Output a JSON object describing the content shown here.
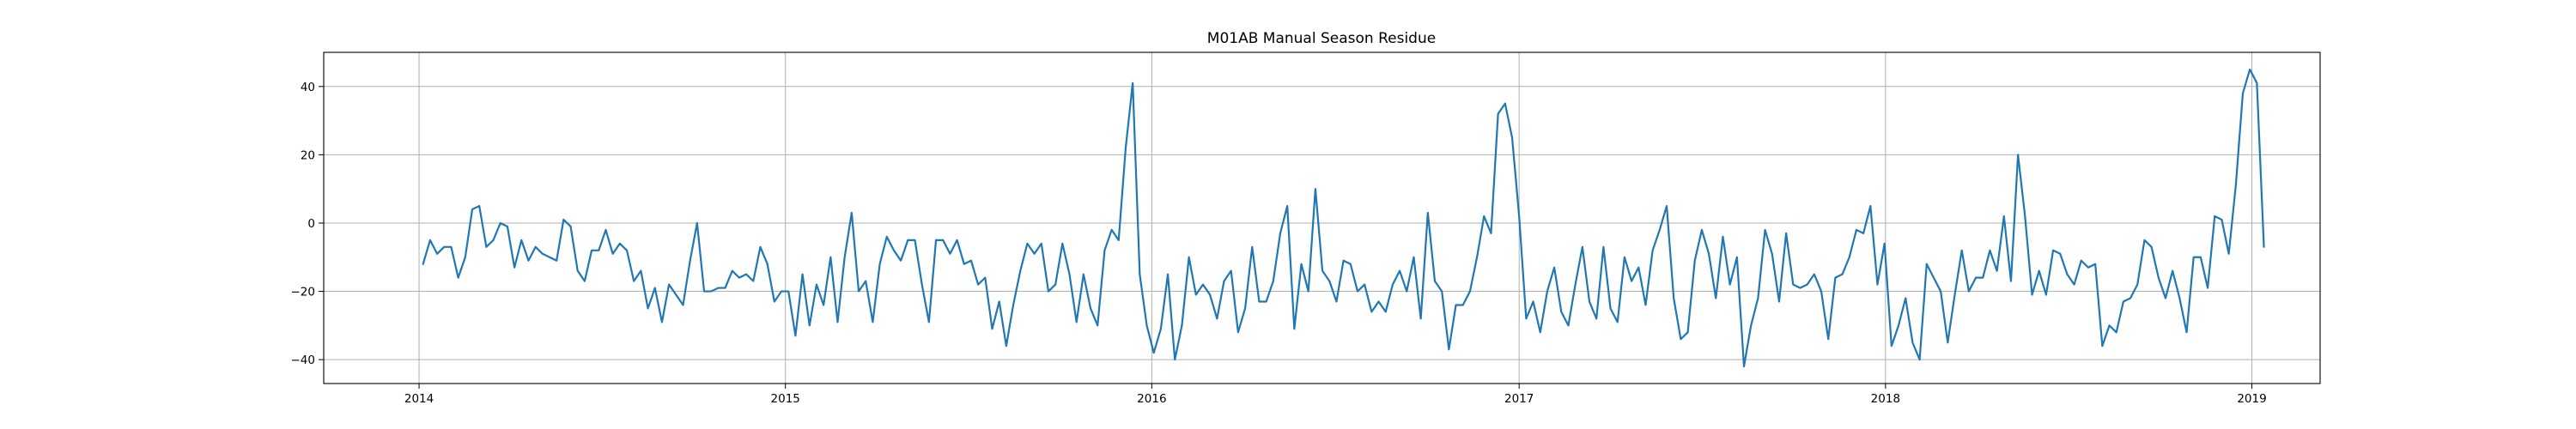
{
  "chart_data": {
    "type": "line",
    "title": "M01AB Manual Season Residue",
    "xlabel": "",
    "ylabel": "",
    "x_range": [
      "2013-09-28",
      "2019-03-10"
    ],
    "xlim": [
      0,
      1989
    ],
    "ylim": [
      -47,
      50
    ],
    "x_ticks": [
      {
        "label": "2014",
        "date": "2014-01-01"
      },
      {
        "label": "2015",
        "date": "2015-01-01"
      },
      {
        "label": "2016",
        "date": "2016-01-01"
      },
      {
        "label": "2017",
        "date": "2017-01-01"
      },
      {
        "label": "2018",
        "date": "2018-01-01"
      },
      {
        "label": "2019",
        "date": "2019-01-01"
      }
    ],
    "y_ticks": [
      {
        "label": "40",
        "value": 40
      },
      {
        "label": "20",
        "value": 20
      },
      {
        "label": "0",
        "value": 0
      },
      {
        "label": "−20",
        "value": -20
      },
      {
        "label": "−40",
        "value": -40
      }
    ],
    "grid": true,
    "series": [
      {
        "color": "#1f77b4",
        "start_date": "2014-01-05",
        "step_days": 7,
        "values": [
          -12,
          -5,
          -9,
          -7,
          -7,
          -16,
          -10,
          4,
          5,
          -7,
          -5,
          0,
          -1,
          -13,
          -5,
          -11,
          -7,
          -9,
          -10,
          -11,
          1,
          -1,
          -14,
          -17,
          -8,
          -8,
          -2,
          -9,
          -6,
          -8,
          -17,
          -14,
          -25,
          -19,
          -29,
          -18,
          -21,
          -24,
          -11,
          0,
          -20,
          -20,
          -19,
          -19,
          -14,
          -16,
          -15,
          -17,
          -7,
          -12,
          -23,
          -20,
          -20,
          -33,
          -15,
          -30,
          -18,
          -24,
          -10,
          -29,
          -10,
          3,
          -20,
          -17,
          -29,
          -12,
          -4,
          -8,
          -11,
          -5,
          -5,
          -18,
          -29,
          -5,
          -5,
          -9,
          -5,
          -12,
          -11,
          -18,
          -16,
          -31,
          -23,
          -36,
          -24,
          -14,
          -6,
          -9,
          -6,
          -20,
          -18,
          -6,
          -15,
          -29,
          -15,
          -25,
          -30,
          -8,
          -2,
          -5,
          22,
          41,
          -15,
          -30,
          -38,
          -31,
          -15,
          -40,
          -30,
          -10,
          -21,
          -18,
          -21,
          -28,
          -17,
          -14,
          -32,
          -25,
          -7,
          -23,
          -23,
          -17,
          -3,
          5,
          -31,
          -12,
          -20,
          10,
          -14,
          -17,
          -23,
          -11,
          -12,
          -20,
          -18,
          -26,
          -23,
          -26,
          -18,
          -14,
          -20,
          -10,
          -28,
          3,
          -17,
          -20,
          -37,
          -24,
          -24,
          -20,
          -10,
          2,
          -3,
          32,
          35,
          25,
          2,
          -28,
          -23,
          -32,
          -20,
          -13,
          -26,
          -30,
          -18,
          -7,
          -23,
          -28,
          -7,
          -25,
          -29,
          -10,
          -17,
          -13,
          -24,
          -8,
          -2,
          5,
          -22,
          -34,
          -32,
          -11,
          -2,
          -9,
          -22,
          -4,
          -18,
          -10,
          -42,
          -30,
          -22,
          -2,
          -9,
          -23,
          -3,
          -18,
          -19,
          -18,
          -15,
          -20,
          -34,
          -16,
          -15,
          -10,
          -2,
          -3,
          5,
          -18,
          -6,
          -36,
          -30,
          -22,
          -35,
          -40,
          -12,
          -16,
          -20,
          -35,
          -21,
          -8,
          -20,
          -16,
          -16,
          -8,
          -14,
          2,
          -17,
          20,
          2,
          -21,
          -14,
          -21,
          -8,
          -9,
          -15,
          -18,
          -11,
          -13,
          -12,
          -36,
          -30,
          -32,
          -23,
          -22,
          -18,
          -5,
          -7,
          -16,
          -22,
          -14,
          -22,
          -32,
          -10,
          -10,
          -19,
          2,
          1,
          -9,
          11,
          38,
          45,
          41,
          -7
        ]
      }
    ]
  }
}
